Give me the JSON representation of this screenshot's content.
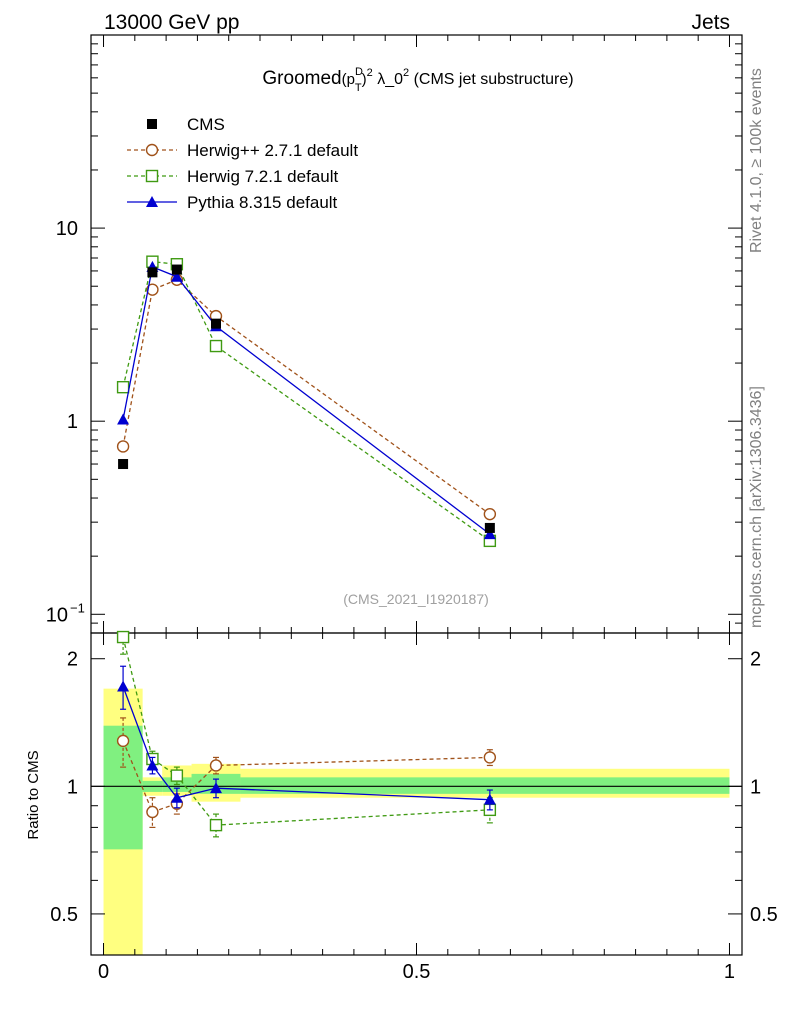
{
  "header": {
    "left": "13000 GeV pp",
    "right": "Jets"
  },
  "side_text": {
    "rivet": "Rivet 4.1.0, ≥ 100k events",
    "mcplots": "mcplots.cern.ch [arXiv:1306.3436]"
  },
  "chart_data": {
    "type": "line",
    "title": {
      "prefix": "Groomed",
      "p": "(p",
      "sup_d": "D",
      "sub_t": "T",
      "close": ")",
      "sq": "2",
      "lambda": " λ_0",
      "sq2": "2",
      "suffix": " (CMS jet substructure)"
    },
    "analysis_id": "(CMS_2021_I1920187)",
    "x": [
      0.03125,
      0.078125,
      0.1171875,
      0.1796875,
      0.6171875
    ],
    "x_range": [
      -0.02,
      1.02
    ],
    "main_panel": {
      "yscale": "log",
      "ylim": [
        0.08,
        100
      ],
      "yticks": [
        {
          "v": 0.1,
          "label": "10",
          "sup": "−1"
        },
        {
          "v": 1,
          "label": "1",
          "sup": ""
        },
        {
          "v": 10,
          "label": "10",
          "sup": ""
        }
      ]
    },
    "ratio_panel": {
      "ylabel": "Ratio to CMS",
      "ylim": [
        0.4,
        2.3
      ],
      "yticks": [
        {
          "v": 0.5,
          "label": "0.5"
        },
        {
          "v": 1,
          "label": "1"
        },
        {
          "v": 2,
          "label": "2"
        }
      ],
      "band_edges": [
        0.0,
        0.0625,
        0.09375,
        0.140625,
        0.21875,
        1.0
      ],
      "band_inner": [
        [
          0.71,
          1.39
        ],
        [
          0.97,
          1.03
        ],
        [
          0.97,
          1.05
        ],
        [
          0.96,
          1.07
        ],
        [
          0.96,
          1.05
        ]
      ],
      "band_outer": [
        [
          0.35,
          1.7
        ],
        [
          0.95,
          1.05
        ],
        [
          0.95,
          1.12
        ],
        [
          0.92,
          1.13
        ],
        [
          0.94,
          1.1
        ]
      ]
    },
    "xticks": [
      {
        "v": 0,
        "label": "0"
      },
      {
        "v": 0.5,
        "label": "0.5"
      },
      {
        "v": 1,
        "label": "1"
      }
    ],
    "legend_position": "top-left",
    "series": [
      {
        "name": "CMS",
        "color": "#000000",
        "marker": "square-filled",
        "line": "none",
        "values": [
          0.6,
          5.9,
          6.1,
          3.2,
          0.28
        ],
        "ratio": [
          1,
          1,
          1,
          1,
          1
        ]
      },
      {
        "name": "Herwig++ 2.7.1 default",
        "color": "#a0521a",
        "marker": "circle-open",
        "line": "dashed",
        "values": [
          0.74,
          4.8,
          5.4,
          3.5,
          0.33
        ],
        "ratio": [
          1.28,
          0.87,
          0.91,
          1.12,
          1.17
        ],
        "ratio_err": [
          0.17,
          0.07,
          0.05,
          0.05,
          0.05
        ]
      },
      {
        "name": "Herwig 7.2.1 default",
        "color": "#3f9a12",
        "marker": "square-open",
        "line": "dashed",
        "values": [
          1.5,
          6.7,
          6.5,
          2.45,
          0.24
        ],
        "ratio": [
          2.25,
          1.16,
          1.06,
          0.81,
          0.88
        ],
        "ratio_err": [
          0.2,
          0.05,
          0.05,
          0.05,
          0.06
        ]
      },
      {
        "name": "Pythia 8.315 default",
        "color": "#0000d0",
        "marker": "triangle-filled",
        "line": "solid",
        "values": [
          1.02,
          6.3,
          5.6,
          3.1,
          0.26
        ],
        "ratio": [
          1.72,
          1.12,
          0.94,
          0.99,
          0.93
        ],
        "ratio_err": [
          0.2,
          0.05,
          0.05,
          0.05,
          0.05
        ]
      }
    ]
  }
}
